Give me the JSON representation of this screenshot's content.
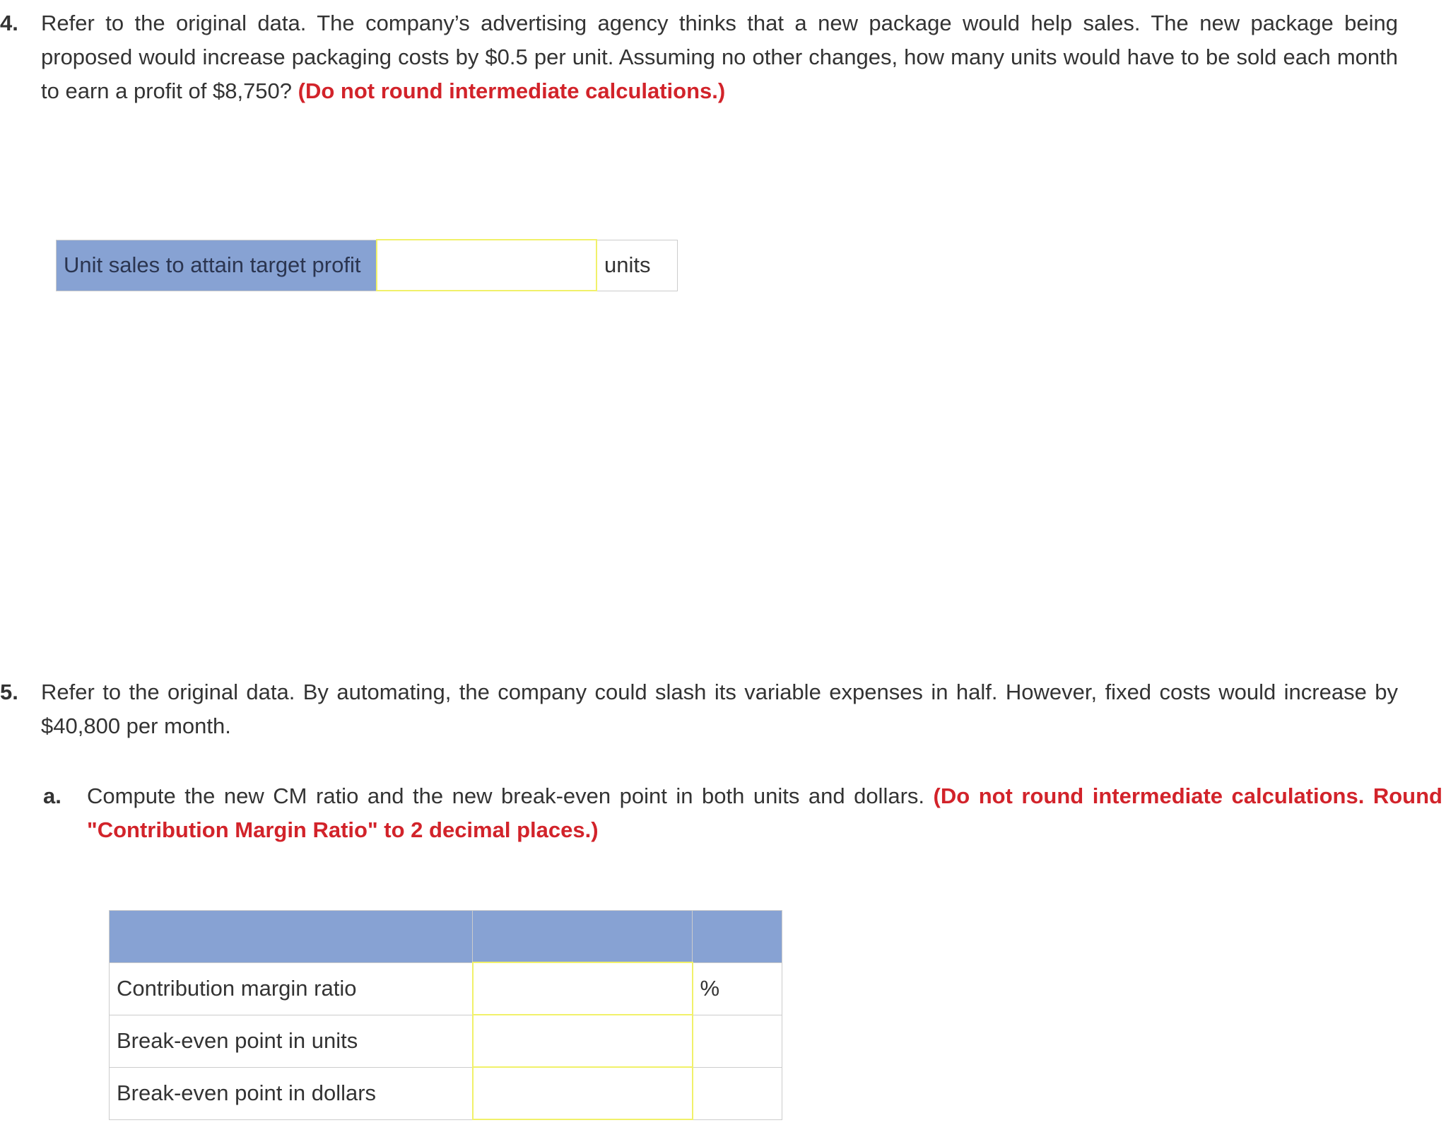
{
  "q4": {
    "number": "4.",
    "text": "Refer to the original data. The company’s advertising agency thinks that a new package would help sales. The new package being proposed would increase packaging costs by $0.5 per unit. Assuming no other changes, how many units would have to be sold each month to earn a profit of $8,750?",
    "instruction": "(Do not round intermediate calculations.)",
    "table": {
      "label": "Unit sales to attain target profit",
      "value": "",
      "unit": "units"
    }
  },
  "q5": {
    "number": "5.",
    "text": "Refer to the original data. By automating, the company could slash its variable expenses in half. However, fixed costs would increase by $40,800 per month.",
    "a": {
      "letter": "a.",
      "text": "Compute the new CM ratio and the new break-even point in both units and dollars.",
      "instruction": "(Do not round intermediate calculations. Round \"Contribution Margin Ratio\" to 2 decimal places.)"
    },
    "table": {
      "rows": [
        {
          "label": "Contribution margin ratio",
          "value": "",
          "unit": "%"
        },
        {
          "label": "Break-even point in units",
          "value": "",
          "unit": ""
        },
        {
          "label": "Break-even point in dollars",
          "value": "",
          "unit": ""
        }
      ]
    }
  },
  "colors": {
    "header_blue": "#87a2d3",
    "input_border": "#f1f16a",
    "instruction_red": "#d2232a"
  }
}
